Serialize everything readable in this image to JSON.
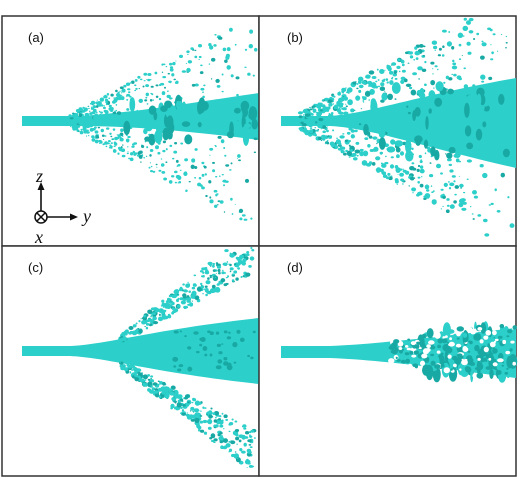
{
  "panels": [
    {
      "label": "(a)"
    },
    {
      "label": "(b)"
    },
    {
      "label": "(c)"
    },
    {
      "label": "(d)"
    }
  ],
  "axes": {
    "z": "z",
    "y": "y",
    "x": "x"
  },
  "colors": {
    "spray": "#2ccfc9",
    "spray_dark": "#19a9a4",
    "frame": "#333333"
  }
}
